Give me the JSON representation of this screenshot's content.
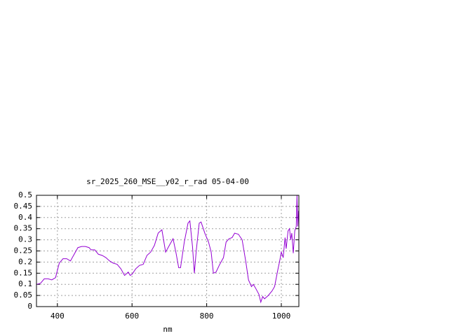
{
  "chart_data": {
    "type": "line",
    "title": "sr_2025_260_MSE__y02_r_rad 05-04-00",
    "x_label": "nm",
    "x": [
      345,
      355,
      365,
      375,
      385,
      395,
      405,
      415,
      425,
      435,
      445,
      455,
      465,
      475,
      485,
      490,
      500,
      510,
      520,
      530,
      540,
      550,
      560,
      570,
      580,
      590,
      595,
      600,
      610,
      620,
      630,
      640,
      650,
      660,
      670,
      680,
      690,
      700,
      710,
      718,
      725,
      730,
      740,
      750,
      755,
      762,
      767,
      772,
      780,
      785,
      795,
      805,
      812,
      818,
      825,
      835,
      845,
      852,
      860,
      868,
      875,
      885,
      895,
      905,
      912,
      920,
      925,
      932,
      940,
      945,
      950,
      955,
      965,
      975,
      982,
      990,
      995,
      1000,
      1005,
      1010,
      1013,
      1018,
      1022,
      1025,
      1028,
      1032,
      1036,
      1040,
      1042,
      1044,
      1046
    ],
    "values": [
      0.1,
      0.105,
      0.125,
      0.125,
      0.12,
      0.13,
      0.195,
      0.215,
      0.215,
      0.205,
      0.235,
      0.265,
      0.27,
      0.27,
      0.265,
      0.255,
      0.255,
      0.235,
      0.23,
      0.22,
      0.205,
      0.195,
      0.19,
      0.17,
      0.14,
      0.155,
      0.14,
      0.145,
      0.17,
      0.185,
      0.19,
      0.23,
      0.245,
      0.275,
      0.33,
      0.345,
      0.245,
      0.275,
      0.305,
      0.24,
      0.175,
      0.175,
      0.29,
      0.375,
      0.385,
      0.27,
      0.15,
      0.25,
      0.375,
      0.38,
      0.33,
      0.29,
      0.245,
      0.15,
      0.155,
      0.19,
      0.22,
      0.29,
      0.305,
      0.31,
      0.33,
      0.325,
      0.3,
      0.2,
      0.12,
      0.09,
      0.1,
      0.08,
      0.055,
      0.02,
      0.045,
      0.035,
      0.05,
      0.07,
      0.09,
      0.16,
      0.2,
      0.245,
      0.22,
      0.31,
      0.26,
      0.34,
      0.35,
      0.3,
      0.33,
      0.24,
      0.34,
      0.36,
      0.5,
      0.36,
      0.43
    ],
    "color": "#9400d3",
    "xlim": [
      344,
      1047
    ],
    "xticks": [
      400,
      600,
      800,
      1000
    ],
    "ylim": [
      0,
      0.5
    ],
    "yticks": [
      0,
      0.05,
      0.1,
      0.15,
      0.2,
      0.25,
      0.3,
      0.35,
      0.4,
      0.45,
      0.5
    ],
    "grid": true
  }
}
